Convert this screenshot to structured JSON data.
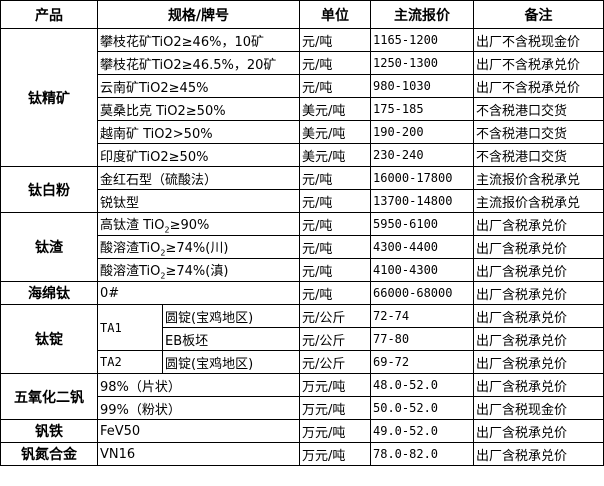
{
  "headers": {
    "product": "产品",
    "spec": "规格/牌号",
    "unit": "单位",
    "price": "主流报价",
    "note": "备注"
  },
  "groups": [
    {
      "product": "钛精矿",
      "rows": [
        {
          "spec": "攀枝花矿TiO2≥46%，10矿",
          "unit": "元/吨",
          "price": "1165-1200",
          "note": "出厂不含税现金价"
        },
        {
          "spec": "攀枝花矿TiO2≥46.5%，20矿",
          "unit": "元/吨",
          "price": "1250-1300",
          "note": "出厂不含税承兑价"
        },
        {
          "spec": "云南矿TiO2≥45%",
          "unit": "元/吨",
          "price": "980-1030",
          "note": "出厂不含税承兑价"
        },
        {
          "spec": "莫桑比克 TiO2≥50%",
          "unit": "美元/吨",
          "price": "175-185",
          "note": "不含税港口交货"
        },
        {
          "spec": "越南矿 TiO2>50%",
          "unit": "美元/吨",
          "price": "190-200",
          "note": "不含税港口交货"
        },
        {
          "spec": "印度矿TiO2≥50%",
          "unit": "美元/吨",
          "price": "230-240",
          "note": "不含税港口交货"
        }
      ]
    },
    {
      "product": "钛白粉",
      "rows": [
        {
          "spec": "金红石型（硫酸法）",
          "unit": "元/吨",
          "price": "16000-17800",
          "note": "主流报价含税承兑"
        },
        {
          "spec": "锐钛型",
          "unit": "元/吨",
          "price": "13700-14800",
          "note": "主流报价含税承兑"
        }
      ]
    },
    {
      "product": "钛渣",
      "rows": [
        {
          "spec_pre": "高钛渣 TiO",
          "spec_sub": "2",
          "spec_post": "≥90%",
          "unit": "元/吨",
          "price": "5950-6100",
          "note": "出厂含税承兑价"
        },
        {
          "spec_pre": "酸溶渣TiO",
          "spec_sub": "2",
          "spec_post": "≥74%(川)",
          "unit": "元/吨",
          "price": "4300-4400",
          "note": "出厂含税承兑价"
        },
        {
          "spec_pre": "酸溶渣TiO",
          "spec_sub": "2",
          "spec_post": "≥74%(滇)",
          "unit": "元/吨",
          "price": "4100-4300",
          "note": "出厂含税承兑价"
        }
      ]
    },
    {
      "product": "海绵钛",
      "rows": [
        {
          "spec": "0#",
          "unit": "元/吨",
          "price": "66000-68000",
          "note": "出厂含税承兑价"
        }
      ]
    },
    {
      "product": "钛锭",
      "rows": [
        {
          "grade": "TA1",
          "spec": "圆锭(宝鸡地区)",
          "unit": "元/公斤",
          "price": "72-74",
          "note": "出厂含税承兑价"
        },
        {
          "spec": "EB板坯",
          "unit": "元/公斤",
          "price": "77-80",
          "note": "出厂含税承兑价"
        },
        {
          "grade": "TA2",
          "spec": "圆锭(宝鸡地区)",
          "unit": "元/公斤",
          "price": "69-72",
          "note": "出厂含税承兑价"
        }
      ]
    },
    {
      "product": "五氧化二钒",
      "rows": [
        {
          "spec": "98%（片状）",
          "unit": "万元/吨",
          "price": "48.0-52.0",
          "note": "出厂含税承兑价"
        },
        {
          "spec": "99%（粉状）",
          "unit": "万元/吨",
          "price": "50.0-52.0",
          "note": "出厂含税现金价"
        }
      ]
    },
    {
      "product": "钒铁",
      "rows": [
        {
          "spec": "FeV50",
          "unit": "万元/吨",
          "price": "49.0-52.0",
          "note": "出厂含税承兑价"
        }
      ]
    },
    {
      "product": "钒氮合金",
      "rows": [
        {
          "spec": "VN16",
          "unit": "万元/吨",
          "price": "78.0-82.0",
          "note": "出厂含税承兑价"
        }
      ]
    }
  ]
}
